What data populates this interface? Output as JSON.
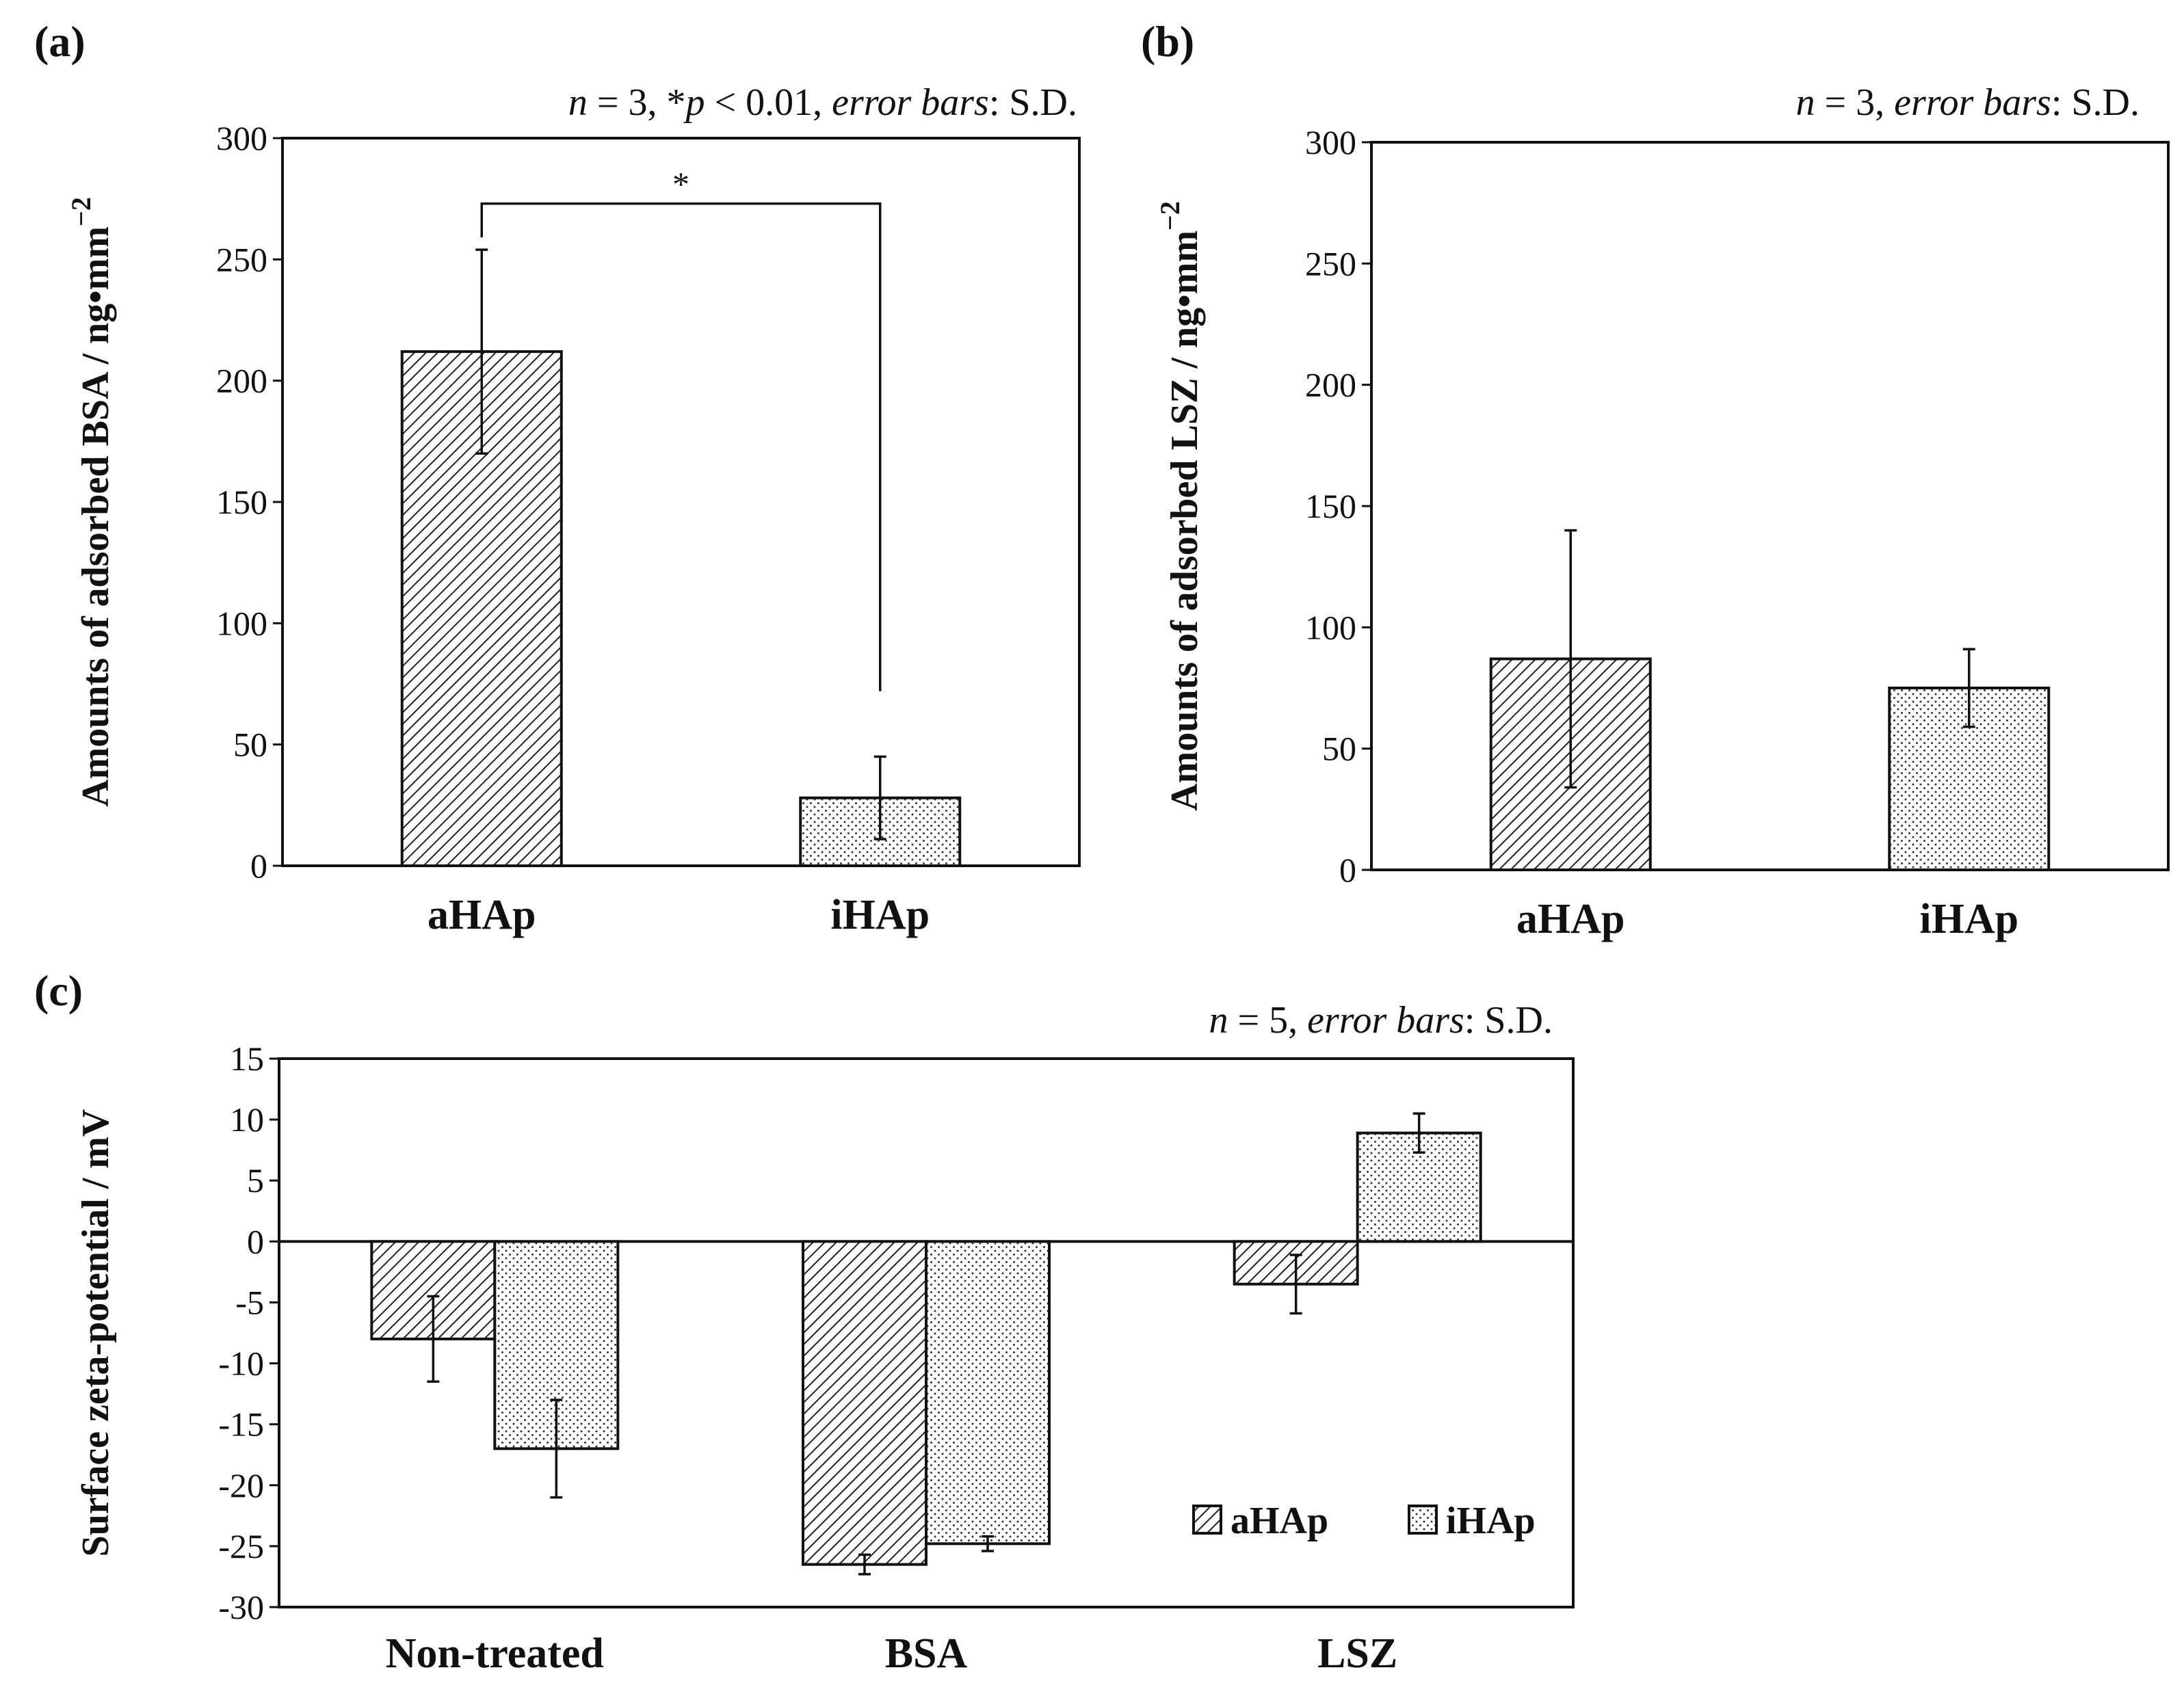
{
  "figure": {
    "panel_a_label": "(a)",
    "panel_b_label": "(b)",
    "panel_c_label": "(c)",
    "note_a_n": "n",
    "note_a_mid": " = 3, *",
    "note_a_p": "p",
    "note_a_mid2": " < 0.01, ",
    "note_a_eb": "error bars",
    "note_a_end": ": S.D.",
    "note_b_n": "n",
    "note_b_mid": " = 3, ",
    "note_b_eb": "error bars",
    "note_b_end": ": S.D.",
    "note_c_n": "n",
    "note_c_mid": " = 5, ",
    "note_c_eb": "error bars",
    "note_c_end": ": S.D.",
    "significance_marker": "*"
  },
  "colors": {
    "aHAp_fill": "hatched-diagonal",
    "iHAp_fill": "dotted"
  },
  "chart_data": [
    {
      "type": "bar",
      "panel": "(a)",
      "categories": [
        "aHAp",
        "iHAp"
      ],
      "values": [
        212,
        28
      ],
      "errors": [
        42,
        17
      ],
      "ylabel": "Amounts of adsorbed BSA / ng•mm",
      "ylabel_sup": "−2",
      "ylim": [
        0,
        300
      ],
      "yticks": [
        0,
        50,
        100,
        150,
        200,
        250,
        300
      ],
      "annotation": "*"
    },
    {
      "type": "bar",
      "panel": "(b)",
      "categories": [
        "aHAp",
        "iHAp"
      ],
      "values": [
        87,
        75
      ],
      "errors": [
        53,
        16
      ],
      "ylabel": "Amounts of adsorbed LSZ / ng•mm",
      "ylabel_sup": "−2",
      "ylim": [
        0,
        300
      ],
      "yticks": [
        0,
        50,
        100,
        150,
        200,
        250,
        300
      ]
    },
    {
      "type": "bar",
      "panel": "(c)",
      "categories": [
        "Non-treated",
        "BSA",
        "LSZ"
      ],
      "series": [
        {
          "name": "aHAp",
          "values": [
            -8,
            -26.5,
            -3.5
          ],
          "errors": [
            3.5,
            0.8,
            2.4
          ]
        },
        {
          "name": "iHAp",
          "values": [
            -17,
            -24.8,
            8.9
          ],
          "errors": [
            4,
            0.6,
            1.6
          ]
        }
      ],
      "ylabel": "Surface zeta-potential / mV",
      "ylim": [
        -30,
        15
      ],
      "yticks": [
        15,
        10,
        5,
        0,
        -5,
        -10,
        -15,
        -20,
        -25,
        -30
      ],
      "legend": [
        "aHAp",
        "iHAp"
      ]
    }
  ]
}
